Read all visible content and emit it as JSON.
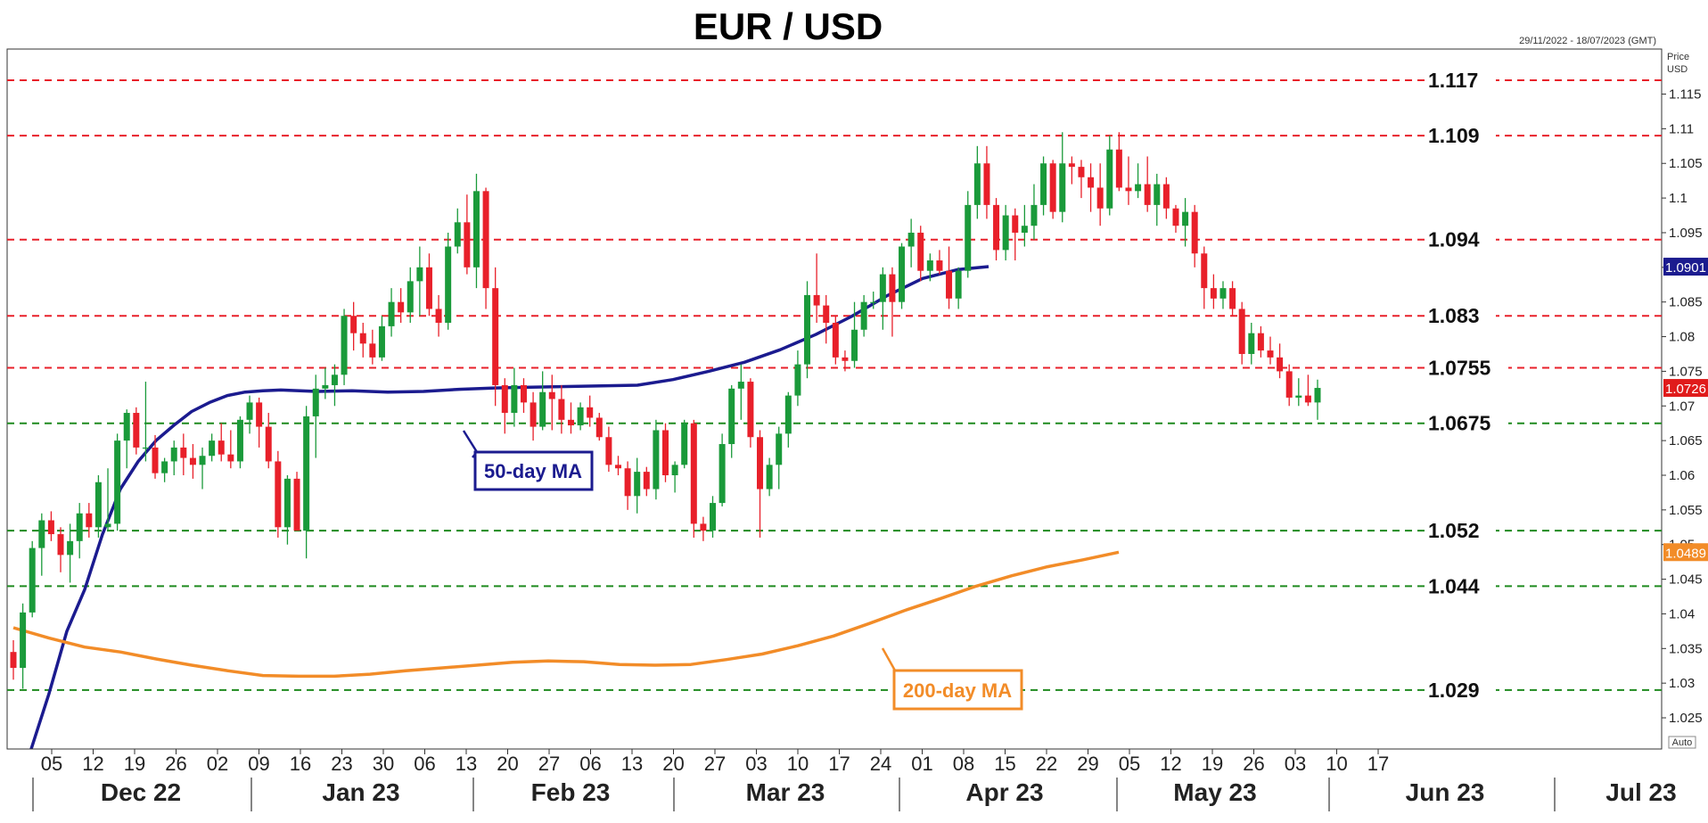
{
  "chart_data": {
    "type": "candlestick",
    "title": "EUR / USD",
    "date_range": "29/11/2022 - 18/07/2023 (GMT)",
    "y_axis_caption": [
      "Price",
      "USD"
    ],
    "auto_label": "Auto",
    "ylim": [
      1.0205,
      1.1215
    ],
    "y_ticks": [
      "1.025",
      "1.03",
      "1.035",
      "1.04",
      "1.045",
      "1.05",
      "1.055",
      "1.06",
      "1.065",
      "1.07",
      "1.075",
      "1.08",
      "1.085",
      "1.09",
      "1.095",
      "1.1",
      "1.105",
      "1.11",
      "1.115"
    ],
    "x_ticks": [
      "05",
      "12",
      "19",
      "26",
      "02",
      "09",
      "16",
      "23",
      "30",
      "06",
      "13",
      "20",
      "27",
      "06",
      "13",
      "20",
      "27",
      "03",
      "10",
      "17",
      "24",
      "01",
      "08",
      "15",
      "22",
      "29",
      "05",
      "12",
      "19",
      "26",
      "03",
      "10",
      "17"
    ],
    "months": [
      "Dec 22",
      "Jan 23",
      "Feb 23",
      "Mar 23",
      "Apr 23",
      "May 23",
      "Jun 23",
      "Jul 23"
    ],
    "levels": [
      {
        "label": "1.117",
        "value": 1.117,
        "color": "#e8202a"
      },
      {
        "label": "1.109",
        "value": 1.109,
        "color": "#e8202a"
      },
      {
        "label": "1.094",
        "value": 1.094,
        "color": "#e8202a"
      },
      {
        "label": "1.083",
        "value": 1.083,
        "color": "#e8202a"
      },
      {
        "label": "1.0755",
        "value": 1.0755,
        "color": "#e8202a"
      },
      {
        "label": "1.0675",
        "value": 1.0675,
        "color": "#1f8a1f"
      },
      {
        "label": "1.052",
        "value": 1.052,
        "color": "#1f8a1f"
      },
      {
        "label": "1.044",
        "value": 1.044,
        "color": "#1f8a1f"
      },
      {
        "label": "1.029",
        "value": 1.029,
        "color": "#1f8a1f"
      }
    ],
    "candles": [
      [
        1.0345,
        1.0362,
        1.0305,
        1.0322
      ],
      [
        1.0322,
        1.0415,
        1.0292,
        1.0402
      ],
      [
        1.0402,
        1.0505,
        1.0395,
        1.0495
      ],
      [
        1.0495,
        1.0545,
        1.0455,
        1.0535
      ],
      [
        1.0535,
        1.0548,
        1.0505,
        1.0515
      ],
      [
        1.0515,
        1.0525,
        1.046,
        1.0485
      ],
      [
        1.0485,
        1.053,
        1.0445,
        1.0505
      ],
      [
        1.0505,
        1.056,
        1.048,
        1.0545
      ],
      [
        1.0545,
        1.056,
        1.051,
        1.0525
      ],
      [
        1.0525,
        1.06,
        1.051,
        1.059
      ],
      [
        1.0525,
        1.061,
        1.052,
        1.053
      ],
      [
        1.053,
        1.066,
        1.052,
        1.065
      ],
      [
        1.065,
        1.0695,
        1.061,
        1.069
      ],
      [
        1.069,
        1.0698,
        1.063,
        1.064
      ],
      [
        1.064,
        1.0735,
        1.062,
        1.064
      ],
      [
        1.064,
        1.0658,
        1.0595,
        1.0603
      ],
      [
        1.0603,
        1.0625,
        1.059,
        1.062
      ],
      [
        1.062,
        1.065,
        1.06,
        1.064
      ],
      [
        1.064,
        1.066,
        1.06,
        1.0625
      ],
      [
        1.0625,
        1.0645,
        1.0595,
        1.0615
      ],
      [
        1.0615,
        1.064,
        1.058,
        1.0628
      ],
      [
        1.0628,
        1.066,
        1.062,
        1.065
      ],
      [
        1.065,
        1.0675,
        1.062,
        1.063
      ],
      [
        1.063,
        1.0665,
        1.061,
        1.062
      ],
      [
        1.062,
        1.0685,
        1.061,
        1.068
      ],
      [
        1.068,
        1.0715,
        1.066,
        1.0705
      ],
      [
        1.0705,
        1.0712,
        1.064,
        1.067
      ],
      [
        1.067,
        1.069,
        1.061,
        1.062
      ],
      [
        1.062,
        1.0635,
        1.051,
        1.0525
      ],
      [
        1.0525,
        1.06,
        1.05,
        1.0595
      ],
      [
        1.0595,
        1.0605,
        1.052,
        1.052
      ],
      [
        1.052,
        1.07,
        1.048,
        1.0685
      ],
      [
        1.0685,
        1.0745,
        1.0625,
        1.0725
      ],
      [
        1.0725,
        1.0755,
        1.071,
        1.073
      ],
      [
        1.073,
        1.076,
        1.07,
        1.0745
      ],
      [
        1.0745,
        1.084,
        1.073,
        1.083
      ],
      [
        1.083,
        1.085,
        1.078,
        1.0805
      ],
      [
        1.0805,
        1.082,
        1.077,
        1.079
      ],
      [
        1.079,
        1.081,
        1.076,
        1.077
      ],
      [
        1.077,
        1.083,
        1.0765,
        1.0815
      ],
      [
        1.0815,
        1.087,
        1.08,
        1.085
      ],
      [
        1.085,
        1.087,
        1.082,
        1.0835
      ],
      [
        1.0835,
        1.09,
        1.082,
        1.088
      ],
      [
        1.088,
        1.093,
        1.083,
        1.09
      ],
      [
        1.09,
        1.092,
        1.083,
        1.084
      ],
      [
        1.084,
        1.086,
        1.08,
        1.082
      ],
      [
        1.082,
        1.095,
        1.081,
        1.093
      ],
      [
        1.093,
        1.0985,
        1.092,
        1.0965
      ],
      [
        1.0965,
        1.1005,
        1.089,
        1.09
      ],
      [
        1.09,
        1.1035,
        1.087,
        1.101
      ],
      [
        1.101,
        1.1015,
        1.084,
        1.087
      ],
      [
        1.087,
        1.09,
        1.07,
        1.073
      ],
      [
        1.073,
        1.074,
        1.066,
        1.069
      ],
      [
        1.069,
        1.0755,
        1.067,
        1.073
      ],
      [
        1.073,
        1.074,
        1.069,
        1.0705
      ],
      [
        1.0705,
        1.072,
        1.065,
        1.067
      ],
      [
        1.067,
        1.075,
        1.0665,
        1.072
      ],
      [
        1.072,
        1.0745,
        1.0665,
        1.071
      ],
      [
        1.071,
        1.073,
        1.066,
        1.068
      ],
      [
        1.068,
        1.0705,
        1.066,
        1.0672
      ],
      [
        1.0672,
        1.0705,
        1.0665,
        1.0698
      ],
      [
        1.0698,
        1.0715,
        1.067,
        1.0683
      ],
      [
        1.0683,
        1.069,
        1.065,
        1.0655
      ],
      [
        1.0655,
        1.067,
        1.0605,
        1.0615
      ],
      [
        1.0615,
        1.0628,
        1.06,
        1.061
      ],
      [
        1.061,
        1.062,
        1.055,
        1.057
      ],
      [
        1.057,
        1.0625,
        1.0545,
        1.0605
      ],
      [
        1.0605,
        1.0612,
        1.057,
        1.058
      ],
      [
        1.058,
        1.068,
        1.0565,
        1.0665
      ],
      [
        1.0665,
        1.0675,
        1.059,
        1.06
      ],
      [
        1.06,
        1.062,
        1.0575,
        1.0615
      ],
      [
        1.0615,
        1.068,
        1.061,
        1.0675
      ],
      [
        1.0675,
        1.068,
        1.051,
        1.053
      ],
      [
        1.053,
        1.054,
        1.0505,
        1.052
      ],
      [
        1.052,
        1.057,
        1.051,
        1.056
      ],
      [
        1.056,
        1.066,
        1.0555,
        1.0645
      ],
      [
        1.0645,
        1.073,
        1.0625,
        1.0725
      ],
      [
        1.0725,
        1.076,
        1.068,
        1.0735
      ],
      [
        1.0735,
        1.074,
        1.064,
        1.0655
      ],
      [
        1.0655,
        1.0665,
        1.051,
        1.058
      ],
      [
        1.058,
        1.0625,
        1.057,
        1.0615
      ],
      [
        1.0615,
        1.067,
        1.058,
        1.066
      ],
      [
        1.066,
        1.072,
        1.064,
        1.0715
      ],
      [
        1.0715,
        1.078,
        1.07,
        1.076
      ],
      [
        1.076,
        1.088,
        1.074,
        1.086
      ],
      [
        1.086,
        1.092,
        1.082,
        1.0845
      ],
      [
        1.0845,
        1.086,
        1.079,
        1.082
      ],
      [
        1.082,
        1.083,
        1.076,
        1.077
      ],
      [
        1.077,
        1.078,
        1.075,
        1.0765
      ],
      [
        1.0765,
        1.085,
        1.0755,
        1.081
      ],
      [
        1.081,
        1.086,
        1.08,
        1.085
      ],
      [
        1.085,
        1.0865,
        1.084,
        1.085
      ],
      [
        1.085,
        1.09,
        1.081,
        1.089
      ],
      [
        1.089,
        1.09,
        1.08,
        1.085
      ],
      [
        1.085,
        1.0935,
        1.084,
        1.093
      ],
      [
        1.093,
        1.097,
        1.09,
        1.095
      ],
      [
        1.095,
        1.096,
        1.088,
        1.0895
      ],
      [
        1.0895,
        1.092,
        1.088,
        1.091
      ],
      [
        1.091,
        1.0925,
        1.089,
        1.0895
      ],
      [
        1.0895,
        1.093,
        1.084,
        1.0855
      ],
      [
        1.0855,
        1.09,
        1.084,
        1.0895
      ],
      [
        1.0895,
        1.101,
        1.0885,
        1.099
      ],
      [
        1.099,
        1.1075,
        1.097,
        1.105
      ],
      [
        1.105,
        1.1075,
        1.097,
        1.099
      ],
      [
        1.099,
        1.1,
        1.091,
        1.0925
      ],
      [
        1.0925,
        1.099,
        1.091,
        1.0975
      ],
      [
        1.0975,
        1.0985,
        1.091,
        1.095
      ],
      [
        1.095,
        1.099,
        1.093,
        1.096
      ],
      [
        1.096,
        1.102,
        1.094,
        1.099
      ],
      [
        1.099,
        1.106,
        1.0975,
        1.105
      ],
      [
        1.105,
        1.1055,
        1.097,
        1.098
      ],
      [
        1.098,
        1.1095,
        1.0965,
        1.105
      ],
      [
        1.105,
        1.106,
        1.102,
        1.1045
      ],
      [
        1.1045,
        1.1055,
        1.1,
        1.103
      ],
      [
        1.103,
        1.105,
        1.098,
        1.1015
      ],
      [
        1.1015,
        1.105,
        1.096,
        1.0985
      ],
      [
        1.0985,
        1.109,
        1.0975,
        1.107
      ],
      [
        1.107,
        1.1095,
        1.101,
        1.1015
      ],
      [
        1.1015,
        1.106,
        1.099,
        1.101
      ],
      [
        1.101,
        1.105,
        1.1,
        1.102
      ],
      [
        1.102,
        1.106,
        1.098,
        1.099
      ],
      [
        1.099,
        1.1035,
        1.096,
        1.102
      ],
      [
        1.102,
        1.103,
        1.097,
        1.0985
      ],
      [
        1.0985,
        1.099,
        1.095,
        1.096
      ],
      [
        1.096,
        1.1,
        1.093,
        1.098
      ],
      [
        1.098,
        1.099,
        1.09,
        1.092
      ],
      [
        1.092,
        1.093,
        1.084,
        1.087
      ],
      [
        1.087,
        1.089,
        1.084,
        1.0855
      ],
      [
        1.0855,
        1.088,
        1.084,
        1.087
      ],
      [
        1.087,
        1.088,
        1.083,
        1.084
      ],
      [
        1.084,
        1.085,
        1.076,
        1.0775
      ],
      [
        1.0775,
        1.082,
        1.076,
        1.0805
      ],
      [
        1.0805,
        1.0815,
        1.077,
        1.078
      ],
      [
        1.078,
        1.08,
        1.076,
        1.077
      ],
      [
        1.077,
        1.079,
        1.074,
        1.075
      ],
      [
        1.075,
        1.076,
        1.07,
        1.0712
      ],
      [
        1.0712,
        1.074,
        1.07,
        1.0715
      ],
      [
        1.0715,
        1.0745,
        1.07,
        1.0705
      ],
      [
        1.0705,
        1.0738,
        1.068,
        1.0726
      ]
    ],
    "series": [
      {
        "name": "50-day MA",
        "color": "#1b1b8f",
        "points": [
          [
            20,
            1.0205
          ],
          [
            40,
            1.0285
          ],
          [
            60,
            1.0375
          ],
          [
            80,
            1.0435
          ],
          [
            100,
            1.0515
          ],
          [
            120,
            1.058
          ],
          [
            140,
            1.062
          ],
          [
            160,
            1.065
          ],
          [
            180,
            1.0672
          ],
          [
            200,
            1.0692
          ],
          [
            220,
            1.0705
          ],
          [
            240,
            1.0715
          ],
          [
            260,
            1.072
          ],
          [
            280,
            1.0722
          ],
          [
            300,
            1.0723
          ],
          [
            340,
            1.0721
          ],
          [
            380,
            1.0722
          ],
          [
            420,
            1.072
          ],
          [
            460,
            1.0721
          ],
          [
            500,
            1.0724
          ],
          [
            540,
            1.0726
          ],
          [
            580,
            1.0727
          ],
          [
            620,
            1.0728
          ],
          [
            660,
            1.0729
          ],
          [
            700,
            1.073
          ],
          [
            740,
            1.0738
          ],
          [
            780,
            1.075
          ],
          [
            820,
            1.0763
          ],
          [
            860,
            1.0781
          ],
          [
            900,
            1.0803
          ],
          [
            940,
            1.0829
          ],
          [
            980,
            1.0859
          ],
          [
            1020,
            1.0884
          ],
          [
            1060,
            1.0897
          ],
          [
            1094,
            1.0901
          ]
        ]
      },
      {
        "name": "200-day MA",
        "color": "#f28c28",
        "points": [
          [
            0,
            1.038
          ],
          [
            40,
            1.0365
          ],
          [
            80,
            1.0352
          ],
          [
            120,
            1.0345
          ],
          [
            160,
            1.0335
          ],
          [
            200,
            1.0326
          ],
          [
            240,
            1.0318
          ],
          [
            280,
            1.0311
          ],
          [
            320,
            1.031
          ],
          [
            360,
            1.031
          ],
          [
            400,
            1.0313
          ],
          [
            440,
            1.0318
          ],
          [
            480,
            1.0322
          ],
          [
            520,
            1.0326
          ],
          [
            560,
            1.033
          ],
          [
            600,
            1.0332
          ],
          [
            640,
            1.0331
          ],
          [
            680,
            1.0327
          ],
          [
            720,
            1.0326
          ],
          [
            760,
            1.0327
          ],
          [
            800,
            1.0334
          ],
          [
            840,
            1.0342
          ],
          [
            880,
            1.0354
          ],
          [
            920,
            1.0368
          ],
          [
            960,
            1.0386
          ],
          [
            1000,
            1.0405
          ],
          [
            1040,
            1.0422
          ],
          [
            1080,
            1.044
          ],
          [
            1120,
            1.0455
          ],
          [
            1160,
            1.0468
          ],
          [
            1200,
            1.0478
          ],
          [
            1240,
            1.0489
          ]
        ]
      }
    ],
    "ma_labels": {
      "ma50": "50-day MA",
      "ma200": "200-day MA"
    },
    "badges": [
      {
        "label": "1.0901",
        "value": 1.0901,
        "color": "#1b1b8f"
      },
      {
        "label": "1.0726",
        "value": 1.0726,
        "color": "#e01b1b"
      },
      {
        "label": "1.0489",
        "value": 1.0489,
        "color": "#f28c28"
      }
    ],
    "bull_color": "#1a9a3a",
    "bear_color": "#e8202a",
    "legend": "none",
    "grid": false
  }
}
